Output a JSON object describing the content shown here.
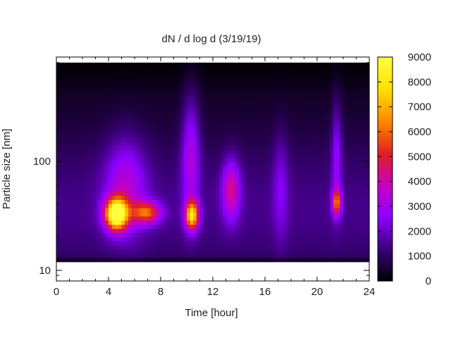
{
  "chart_data": {
    "type": "heatmap",
    "title": "dN / d log d (3/19/19)",
    "xlabel": "Time [hour]",
    "ylabel": "Particle size [nm]",
    "x_ticks": [
      0,
      4,
      8,
      12,
      16,
      20,
      24
    ],
    "xlim": [
      0,
      24
    ],
    "y_scale": "log",
    "y_ticks": [
      10,
      100
    ],
    "ylim": [
      8,
      900
    ],
    "data_range_y": [
      12,
      800
    ],
    "colorbar": {
      "ticks": [
        0,
        1000,
        2000,
        3000,
        4000,
        5000,
        6000,
        7000,
        8000,
        9000
      ],
      "range": [
        0,
        9000
      ],
      "colormap": [
        "#000000",
        "#3a0078",
        "#8c00ff",
        "#c800c0",
        "#e02020",
        "#ff8800",
        "#ffe000",
        "#ffff40"
      ]
    },
    "background_level": 1200,
    "hotspots": [
      {
        "t": 4.6,
        "d": 33,
        "value": 8600,
        "spread_t": 0.85,
        "spread_logd": 0.14
      },
      {
        "t": 5.3,
        "d": 60,
        "value": 2200,
        "spread_t": 1.6,
        "spread_logd": 0.45
      },
      {
        "t": 6.9,
        "d": 34,
        "value": 4300,
        "spread_t": 1.1,
        "spread_logd": 0.1
      },
      {
        "t": 10.4,
        "d": 32,
        "value": 6300,
        "spread_t": 0.5,
        "spread_logd": 0.13
      },
      {
        "t": 10.3,
        "d": 120,
        "value": 2300,
        "spread_t": 0.7,
        "spread_logd": 0.55
      },
      {
        "t": 13.4,
        "d": 55,
        "value": 3000,
        "spread_t": 0.7,
        "spread_logd": 0.28
      },
      {
        "t": 21.5,
        "d": 42,
        "value": 4300,
        "spread_t": 0.35,
        "spread_logd": 0.12
      },
      {
        "t": 21.5,
        "d": 120,
        "value": 1800,
        "spread_t": 0.4,
        "spread_logd": 0.5
      },
      {
        "t": 17.2,
        "d": 60,
        "value": 1200,
        "spread_t": 0.6,
        "spread_logd": 0.5
      }
    ],
    "grid": false
  }
}
